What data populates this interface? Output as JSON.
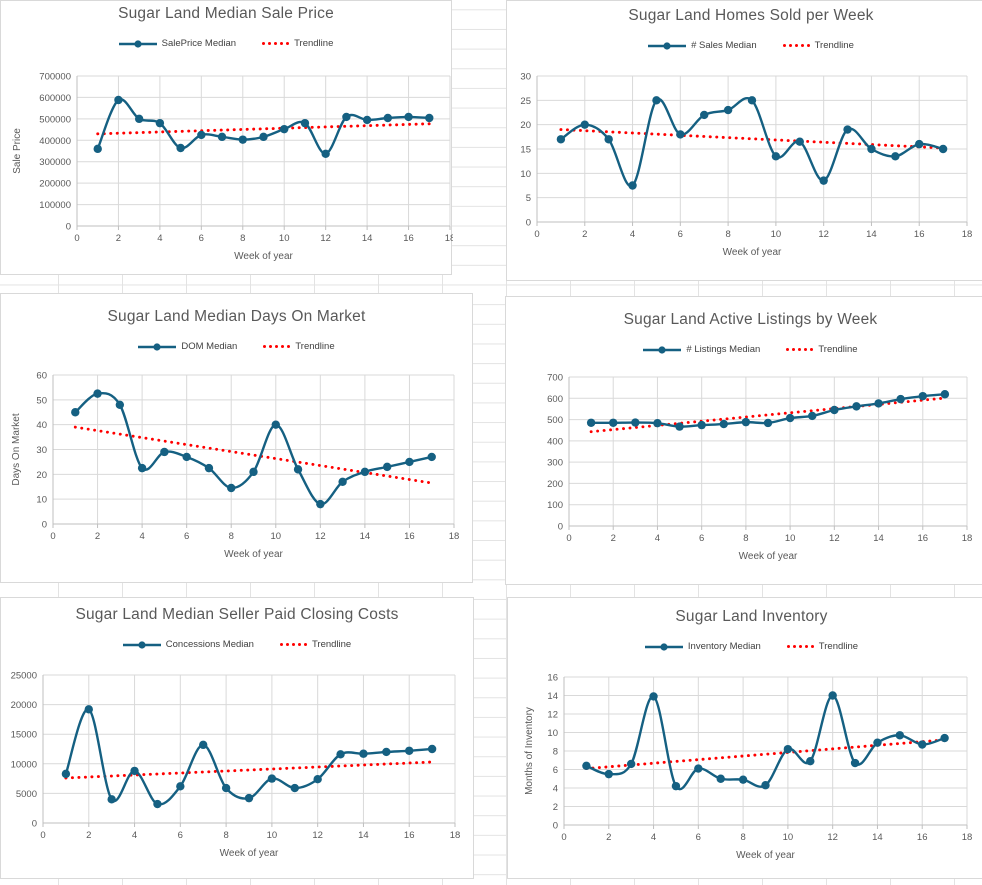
{
  "app": {
    "kind": "spreadsheet with embedded charts"
  },
  "colors": {
    "series": "#156082",
    "trendline": "#ff0000",
    "plot_gridline": "#d9d9d9",
    "axis_line": "#bfbfbf",
    "text": "#595959",
    "cell_gridline": "#e3e3e3",
    "chart_border": "#d9d9d9",
    "chart_background": "#ffffff"
  },
  "chart_data": [
    {
      "type": "line",
      "title": "Sugar Land Median Sale Price",
      "xlabel": "Week of year",
      "ylabel": "Sale Price",
      "xlim": [
        0,
        18
      ],
      "xstep": 2,
      "ylim": [
        0,
        700000
      ],
      "ystep": 100000,
      "grid": true,
      "legend_position": "top",
      "x": [
        1,
        2,
        3,
        4,
        5,
        6,
        7,
        8,
        9,
        10,
        11,
        12,
        13,
        14,
        15,
        16,
        17
      ],
      "series": [
        {
          "name": "SalePrice Median",
          "values": [
            360000,
            588000,
            500000,
            480000,
            364000,
            425000,
            416000,
            403000,
            416000,
            452000,
            480000,
            337000,
            509000,
            495000,
            504000,
            509000,
            504000
          ]
        }
      ],
      "trendline": {
        "name": "Trendline",
        "x": [
          1,
          17
        ],
        "y": [
          430000,
          477000
        ]
      }
    },
    {
      "type": "line",
      "title": "Sugar Land Homes Sold per Week",
      "xlabel": "Week of year",
      "ylabel": "",
      "xlim": [
        0,
        18
      ],
      "xstep": 2,
      "ylim": [
        0,
        30
      ],
      "ystep": 5,
      "grid": true,
      "legend_position": "top",
      "x": [
        1,
        2,
        3,
        4,
        5,
        6,
        7,
        8,
        9,
        10,
        11,
        12,
        13,
        14,
        15,
        16,
        17
      ],
      "series": [
        {
          "name": "# Sales Median",
          "values": [
            17,
            20,
            17,
            7.5,
            25,
            18,
            22,
            23,
            25,
            13.5,
            16.5,
            8.5,
            19,
            15,
            13.5,
            16,
            15
          ]
        }
      ],
      "trendline": {
        "name": "Trendline",
        "x": [
          1,
          17
        ],
        "y": [
          19,
          15.2
        ]
      }
    },
    {
      "type": "line",
      "title": "Sugar Land Median Days On Market",
      "xlabel": "Week of year",
      "ylabel": "Days On Market",
      "xlim": [
        0,
        18
      ],
      "xstep": 2,
      "ylim": [
        0,
        60
      ],
      "ystep": 10,
      "grid": true,
      "legend_position": "top",
      "x": [
        1,
        2,
        3,
        4,
        5,
        6,
        7,
        8,
        9,
        10,
        11,
        12,
        13,
        14,
        15,
        16,
        17
      ],
      "series": [
        {
          "name": "DOM Median",
          "values": [
            45,
            52.5,
            48,
            22.5,
            29,
            27,
            22.5,
            14.5,
            21,
            40,
            22,
            8,
            17,
            21,
            23,
            25,
            27
          ]
        }
      ],
      "trendline": {
        "name": "Trendline",
        "x": [
          1,
          17
        ],
        "y": [
          39,
          16.5
        ]
      }
    },
    {
      "type": "line",
      "title": "Sugar Land Active Listings by Week",
      "xlabel": "Week of year",
      "ylabel": "",
      "xlim": [
        0,
        18
      ],
      "xstep": 2,
      "ylim": [
        0,
        700
      ],
      "ystep": 100,
      "grid": true,
      "legend_position": "top",
      "x": [
        1,
        2,
        3,
        4,
        5,
        6,
        7,
        8,
        9,
        10,
        11,
        12,
        13,
        14,
        15,
        16,
        17
      ],
      "series": [
        {
          "name": "# Listings Median",
          "values": [
            485,
            485,
            486,
            483,
            467,
            474,
            479,
            488,
            484,
            507,
            517,
            545,
            562,
            576,
            596,
            610,
            619
          ]
        }
      ],
      "trendline": {
        "name": "Trendline",
        "x": [
          1,
          17
        ],
        "y": [
          443,
          601
        ]
      }
    },
    {
      "type": "line",
      "title": "Sugar Land Median Seller Paid Closing Costs",
      "xlabel": "Week of year",
      "ylabel": "",
      "xlim": [
        0,
        18
      ],
      "xstep": 2,
      "ylim": [
        0,
        25000
      ],
      "ystep": 5000,
      "grid": true,
      "legend_position": "top",
      "x": [
        1,
        2,
        3,
        4,
        5,
        6,
        7,
        8,
        9,
        10,
        11,
        12,
        13,
        14,
        15,
        16,
        17
      ],
      "series": [
        {
          "name": "Concessions Median",
          "values": [
            8300,
            19200,
            4000,
            8800,
            3200,
            6200,
            13200,
            5900,
            4200,
            7500,
            5900,
            7400,
            11600,
            11700,
            12000,
            12200,
            12500
          ]
        }
      ],
      "trendline": {
        "name": "Trendline",
        "x": [
          1,
          17
        ],
        "y": [
          7600,
          10300
        ]
      }
    },
    {
      "type": "line",
      "title": "Sugar Land Inventory",
      "xlabel": "Week of year",
      "ylabel": "Months of Inventory",
      "xlim": [
        0,
        18
      ],
      "xstep": 2,
      "ylim": [
        0,
        16
      ],
      "ystep": 2,
      "grid": true,
      "legend_position": "top",
      "x": [
        1,
        2,
        3,
        4,
        5,
        6,
        7,
        8,
        9,
        10,
        11,
        12,
        13,
        14,
        15,
        16,
        17
      ],
      "series": [
        {
          "name": "Inventory Median",
          "values": [
            6.4,
            5.5,
            6.6,
            13.9,
            4.2,
            6.1,
            5.0,
            4.9,
            4.3,
            8.2,
            6.9,
            14.0,
            6.7,
            8.9,
            9.7,
            8.7,
            9.4
          ]
        }
      ],
      "trendline": {
        "name": "Trendline",
        "x": [
          1,
          17
        ],
        "y": [
          6.1,
          9.2
        ]
      }
    }
  ]
}
